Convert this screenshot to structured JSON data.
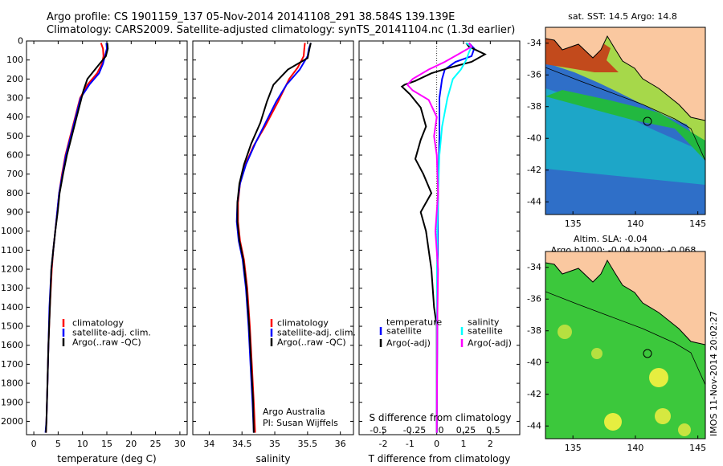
{
  "header": {
    "line1": "Argo profile: CS 1901159_137 05-Nov-2014 20141108_291 38.584S 139.139E",
    "line2": "Climatology: CARS2009. Satellite-adjusted climatology: synTS_20141104.nc (1.3d earlier)"
  },
  "colors": {
    "climatology": "#ff0000",
    "satellite": "#0000ff",
    "argo": "#000000",
    "sat_salinity": "#00ffff",
    "argo_salinity": "#ff00ff",
    "land": "#fac8a0"
  },
  "chart_data": [
    {
      "type": "line",
      "xlabel": "temperature (deg C)",
      "ylim": [
        2070,
        0
      ],
      "xlim": [
        -1.5,
        31.5
      ],
      "xticks": [
        0,
        5,
        10,
        15,
        20,
        25,
        30
      ],
      "yticks": [
        0,
        100,
        200,
        300,
        400,
        500,
        600,
        700,
        800,
        900,
        1000,
        1100,
        1200,
        1300,
        1400,
        1500,
        1600,
        1700,
        1800,
        1900,
        2000
      ],
      "legend": [
        "climatology",
        "satellite-adj. clim.",
        "Argo(..raw -QC)"
      ],
      "series": [
        {
          "name": "climatology",
          "points": [
            [
              13.8,
              10
            ],
            [
              14.2,
              40
            ],
            [
              14.3,
              80
            ],
            [
              14.0,
              120
            ],
            [
              13.0,
              170
            ],
            [
              11.0,
              230
            ],
            [
              9.5,
              300
            ],
            [
              8.5,
              400
            ],
            [
              7.5,
              500
            ],
            [
              6.5,
              600
            ],
            [
              5.8,
              700
            ],
            [
              5.2,
              800
            ],
            [
              4.8,
              900
            ],
            [
              4.4,
              1000
            ],
            [
              4.0,
              1100
            ],
            [
              3.7,
              1200
            ],
            [
              3.3,
              1400
            ],
            [
              3.0,
              1600
            ],
            [
              2.8,
              1800
            ],
            [
              2.6,
              2000
            ],
            [
              2.5,
              2060
            ]
          ]
        },
        {
          "name": "satellite-adj. clim.",
          "points": [
            [
              14.9,
              10
            ],
            [
              15.0,
              40
            ],
            [
              14.6,
              80
            ],
            [
              14.2,
              120
            ],
            [
              13.4,
              170
            ],
            [
              11.4,
              230
            ],
            [
              9.6,
              300
            ],
            [
              8.6,
              400
            ],
            [
              7.6,
              500
            ],
            [
              6.6,
              600
            ],
            [
              5.9,
              700
            ],
            [
              5.2,
              800
            ],
            [
              4.8,
              900
            ],
            [
              4.4,
              1000
            ],
            [
              4.0,
              1100
            ],
            [
              3.6,
              1200
            ],
            [
              3.2,
              1400
            ],
            [
              3.0,
              1600
            ],
            [
              2.8,
              1800
            ],
            [
              2.6,
              2000
            ],
            [
              2.4,
              2060
            ]
          ]
        },
        {
          "name": "Argo(..raw -QC)",
          "points": [
            [
              15.1,
              10
            ],
            [
              15.2,
              40
            ],
            [
              14.8,
              80
            ],
            [
              13.2,
              130
            ],
            [
              11.0,
              200
            ],
            [
              10.2,
              260
            ],
            [
              9.6,
              320
            ],
            [
              8.8,
              400
            ],
            [
              7.8,
              500
            ],
            [
              6.8,
              600
            ],
            [
              6.0,
              700
            ],
            [
              5.3,
              800
            ],
            [
              4.9,
              900
            ],
            [
              4.4,
              1000
            ],
            [
              4.0,
              1100
            ],
            [
              3.6,
              1200
            ],
            [
              3.3,
              1400
            ],
            [
              3.0,
              1600
            ],
            [
              2.8,
              1800
            ],
            [
              2.6,
              2000
            ],
            [
              2.5,
              2060
            ]
          ]
        }
      ]
    },
    {
      "type": "line",
      "xlabel": "salinity",
      "ylim": [
        2070,
        0
      ],
      "xlim": [
        33.75,
        36.2
      ],
      "xticks": [
        34,
        34.5,
        35,
        35.5,
        36
      ],
      "legend": [
        "climatology",
        "satellite-adj. clim.",
        "Argo(..raw -QC)"
      ],
      "annotation": [
        "Argo Australia",
        "PI: Susan Wijffels"
      ],
      "series": [
        {
          "name": "climatology",
          "points": [
            [
              35.46,
              10
            ],
            [
              35.45,
              40
            ],
            [
              35.44,
              80
            ],
            [
              35.35,
              140
            ],
            [
              35.22,
              200
            ],
            [
              35.05,
              320
            ],
            [
              34.85,
              450
            ],
            [
              34.68,
              550
            ],
            [
              34.55,
              650
            ],
            [
              34.47,
              750
            ],
            [
              34.44,
              850
            ],
            [
              34.44,
              950
            ],
            [
              34.47,
              1050
            ],
            [
              34.53,
              1150
            ],
            [
              34.58,
              1300
            ],
            [
              34.62,
              1500
            ],
            [
              34.65,
              1700
            ],
            [
              34.68,
              1900
            ],
            [
              34.7,
              2060
            ]
          ]
        },
        {
          "name": "satellite-adj. clim.",
          "points": [
            [
              35.55,
              10
            ],
            [
              35.52,
              40
            ],
            [
              35.5,
              80
            ],
            [
              35.38,
              150
            ],
            [
              35.18,
              230
            ],
            [
              35.02,
              320
            ],
            [
              34.86,
              430
            ],
            [
              34.7,
              540
            ],
            [
              34.56,
              650
            ],
            [
              34.47,
              750
            ],
            [
              34.43,
              850
            ],
            [
              34.42,
              950
            ],
            [
              34.45,
              1050
            ],
            [
              34.51,
              1150
            ],
            [
              34.56,
              1300
            ],
            [
              34.6,
              1500
            ],
            [
              34.63,
              1700
            ],
            [
              34.66,
              1900
            ],
            [
              34.68,
              2060
            ]
          ]
        },
        {
          "name": "Argo(..raw -QC)",
          "points": [
            [
              35.55,
              10
            ],
            [
              35.53,
              40
            ],
            [
              35.5,
              90
            ],
            [
              35.2,
              150
            ],
            [
              34.98,
              230
            ],
            [
              34.88,
              320
            ],
            [
              34.78,
              430
            ],
            [
              34.64,
              540
            ],
            [
              34.53,
              650
            ],
            [
              34.46,
              750
            ],
            [
              34.43,
              850
            ],
            [
              34.43,
              950
            ],
            [
              34.46,
              1050
            ],
            [
              34.52,
              1150
            ],
            [
              34.57,
              1300
            ],
            [
              34.61,
              1500
            ],
            [
              34.64,
              1700
            ],
            [
              34.67,
              1900
            ],
            [
              34.68,
              2060
            ]
          ]
        }
      ]
    },
    {
      "type": "line",
      "xlabel": "T difference from climatology",
      "xlabel_top": "S difference from climatology",
      "ylim": [
        2070,
        0
      ],
      "xlim": [
        -2.9,
        3.1
      ],
      "xticks": [
        -2,
        -1,
        0,
        1,
        2
      ],
      "xticks_salinity": [
        "-0.5",
        "-0.25",
        "0",
        "0.25",
        "0.5"
      ],
      "legend_headers": [
        "temperature",
        "salinity"
      ],
      "legend": [
        "satellite",
        "Argo(-adj)",
        "satellite",
        "Argo(-adj)"
      ],
      "series": [
        {
          "name": "satellite",
          "points": [
            [
              1.2,
              10
            ],
            [
              1.4,
              40
            ],
            [
              1.3,
              80
            ],
            [
              0.7,
              110
            ],
            [
              0.3,
              150
            ],
            [
              0.2,
              200
            ],
            [
              0.1,
              300
            ],
            [
              0.1,
              500
            ],
            [
              0.05,
              800
            ],
            [
              0.03,
              1200
            ],
            [
              0.02,
              1600
            ],
            [
              0.0,
              2060
            ]
          ]
        },
        {
          "name": "Argo(-adj)",
          "points": [
            [
              1.1,
              10
            ],
            [
              1.2,
              30
            ],
            [
              1.5,
              50
            ],
            [
              1.8,
              70
            ],
            [
              1.3,
              110
            ],
            [
              0.5,
              140
            ],
            [
              -0.2,
              170
            ],
            [
              -0.8,
              210
            ],
            [
              -1.2,
              230
            ],
            [
              -1.3,
              240
            ],
            [
              -1.0,
              280
            ],
            [
              -0.6,
              350
            ],
            [
              -0.4,
              450
            ],
            [
              -0.6,
              520
            ],
            [
              -0.8,
              620
            ],
            [
              -0.5,
              700
            ],
            [
              -0.2,
              800
            ],
            [
              -0.4,
              850
            ],
            [
              -0.6,
              900
            ],
            [
              -0.4,
              1000
            ],
            [
              -0.2,
              1200
            ],
            [
              -0.1,
              1400
            ],
            [
              0,
              1500
            ],
            [
              0,
              2060
            ]
          ]
        },
        {
          "name": "satellite",
          "points": [
            [
              1.1,
              10
            ],
            [
              1.3,
              30
            ],
            [
              1.2,
              60
            ],
            [
              1.1,
              100
            ],
            [
              0.9,
              150
            ],
            [
              0.6,
              200
            ],
            [
              0.4,
              300
            ],
            [
              0.2,
              450
            ],
            [
              0.1,
              600
            ],
            [
              0.05,
              800
            ],
            [
              0.02,
              1000
            ],
            [
              0.01,
              1200
            ],
            [
              0.0,
              2060
            ]
          ]
        },
        {
          "name": "Argo(-adj)",
          "points": [
            [
              1.2,
              10
            ],
            [
              1.3,
              30
            ],
            [
              0.8,
              70
            ],
            [
              0.3,
              110
            ],
            [
              -0.3,
              150
            ],
            [
              -0.9,
              200
            ],
            [
              -1.1,
              230
            ],
            [
              -0.9,
              260
            ],
            [
              -0.3,
              310
            ],
            [
              0.0,
              400
            ],
            [
              -0.1,
              500
            ],
            [
              0.0,
              600
            ],
            [
              0.05,
              800
            ],
            [
              -0.05,
              1000
            ],
            [
              0.05,
              1200
            ],
            [
              0.02,
              1500
            ],
            [
              0.0,
              2060
            ]
          ]
        }
      ]
    }
  ],
  "map_top": {
    "title": "sat. SST: 14.5  Argo: 14.8",
    "xticks": [
      "135",
      "140",
      "145"
    ],
    "yticks": [
      "-34",
      "-36",
      "-38",
      "-40",
      "-42",
      "-44"
    ]
  },
  "map_bottom": {
    "title_line1": "Altim. SLA: -0.04",
    "title_line2": "Argo h1000: -0.04  h2000: -0.068",
    "xticks": [
      "135",
      "140",
      "145"
    ],
    "yticks": [
      "-34",
      "-36",
      "-38",
      "-40",
      "-42",
      "-44"
    ]
  },
  "footer_side": "IMOS 11-Nov-2014 20:02:27"
}
